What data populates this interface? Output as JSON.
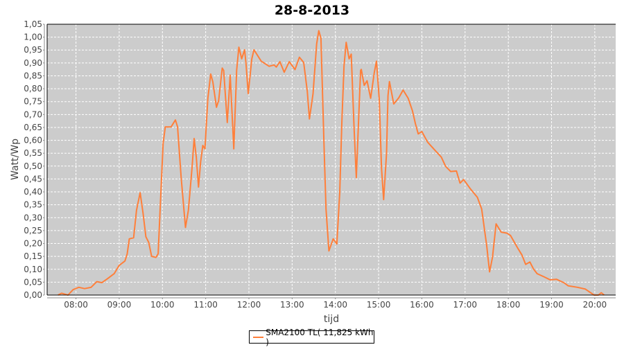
{
  "chart_data": {
    "type": "line",
    "title": "28-8-2013",
    "xlabel": "tijd",
    "ylabel": "Watt/Wp",
    "xlim": [
      "07:20",
      "20:29"
    ],
    "ylim": [
      0,
      1.05
    ],
    "grid": true,
    "legend_position": "bottom",
    "x_ticks": [
      "08:00",
      "09:00",
      "10:00",
      "11:00",
      "12:00",
      "13:00",
      "14:00",
      "15:00",
      "16:00",
      "17:00",
      "18:00",
      "19:00",
      "20:00"
    ],
    "y_ticks": [
      "0,00",
      "0,05",
      "0,10",
      "0,15",
      "0,20",
      "0,25",
      "0,30",
      "0,35",
      "0,40",
      "0,45",
      "0,50",
      "0,55",
      "0,60",
      "0,65",
      "0,70",
      "0,75",
      "0,80",
      "0,85",
      "0,90",
      "0,95",
      "1,00",
      "1,05"
    ],
    "colors": {
      "series": "#ff7f3a",
      "plot_background": "#cccccc",
      "grid": "#ffffff"
    },
    "series": [
      {
        "name": "SMA2100 TL( 11,825 kWh )",
        "points": [
          [
            "07:35",
            0.0
          ],
          [
            "07:40",
            0.007
          ],
          [
            "07:49",
            0.0
          ],
          [
            "07:56",
            0.021
          ],
          [
            "08:04",
            0.03
          ],
          [
            "08:12",
            0.025
          ],
          [
            "08:21",
            0.03
          ],
          [
            "08:29",
            0.052
          ],
          [
            "08:36",
            0.048
          ],
          [
            "08:44",
            0.064
          ],
          [
            "08:53",
            0.083
          ],
          [
            "09:00",
            0.115
          ],
          [
            "09:08",
            0.132
          ],
          [
            "09:11",
            0.159
          ],
          [
            "09:14",
            0.218
          ],
          [
            "09:20",
            0.222
          ],
          [
            "09:24",
            0.329
          ],
          [
            "09:29",
            0.397
          ],
          [
            "09:33",
            0.32
          ],
          [
            "09:37",
            0.226
          ],
          [
            "09:41",
            0.204
          ],
          [
            "09:45",
            0.15
          ],
          [
            "09:51",
            0.146
          ],
          [
            "09:54",
            0.16
          ],
          [
            "09:57",
            0.347
          ],
          [
            "10:01",
            0.589
          ],
          [
            "10:04",
            0.652
          ],
          [
            "10:12",
            0.652
          ],
          [
            "10:18",
            0.679
          ],
          [
            "10:21",
            0.652
          ],
          [
            "10:26",
            0.455
          ],
          [
            "10:32",
            0.262
          ],
          [
            "10:36",
            0.329
          ],
          [
            "10:41",
            0.491
          ],
          [
            "10:44",
            0.607
          ],
          [
            "10:47",
            0.535
          ],
          [
            "10:50",
            0.419
          ],
          [
            "10:53",
            0.517
          ],
          [
            "10:56",
            0.58
          ],
          [
            "10:59",
            0.567
          ],
          [
            "11:03",
            0.763
          ],
          [
            "11:07",
            0.857
          ],
          [
            "11:10",
            0.826
          ],
          [
            "11:15",
            0.728
          ],
          [
            "11:18",
            0.755
          ],
          [
            "11:23",
            0.88
          ],
          [
            "11:25",
            0.871
          ],
          [
            "11:30",
            0.669
          ],
          [
            "11:34",
            0.853
          ],
          [
            "11:39",
            0.567
          ],
          [
            "11:43",
            0.871
          ],
          [
            "11:46",
            0.961
          ],
          [
            "11:50",
            0.916
          ],
          [
            "11:54",
            0.951
          ],
          [
            "11:56",
            0.898
          ],
          [
            "11:59",
            0.781
          ],
          [
            "12:04",
            0.916
          ],
          [
            "12:07",
            0.951
          ],
          [
            "12:17",
            0.907
          ],
          [
            "12:28",
            0.887
          ],
          [
            "12:35",
            0.892
          ],
          [
            "12:38",
            0.884
          ],
          [
            "12:43",
            0.905
          ],
          [
            "12:49",
            0.864
          ],
          [
            "12:56",
            0.905
          ],
          [
            "13:04",
            0.874
          ],
          [
            "13:10",
            0.922
          ],
          [
            "13:16",
            0.902
          ],
          [
            "13:21",
            0.79
          ],
          [
            "13:24",
            0.683
          ],
          [
            "13:29",
            0.781
          ],
          [
            "13:34",
            0.974
          ],
          [
            "13:37",
            1.025
          ],
          [
            "13:40",
            0.996
          ],
          [
            "13:44",
            0.602
          ],
          [
            "13:47",
            0.334
          ],
          [
            "13:51",
            0.171
          ],
          [
            "13:57",
            0.218
          ],
          [
            "14:02",
            0.198
          ],
          [
            "14:06",
            0.397
          ],
          [
            "14:09",
            0.674
          ],
          [
            "14:12",
            0.889
          ],
          [
            "14:15",
            0.98
          ],
          [
            "14:19",
            0.916
          ],
          [
            "14:22",
            0.934
          ],
          [
            "14:26",
            0.647
          ],
          [
            "14:29",
            0.455
          ],
          [
            "14:32",
            0.665
          ],
          [
            "14:35",
            0.871
          ],
          [
            "14:36",
            0.875
          ],
          [
            "14:40",
            0.813
          ],
          [
            "14:44",
            0.831
          ],
          [
            "14:49",
            0.763
          ],
          [
            "14:54",
            0.862
          ],
          [
            "14:57",
            0.907
          ],
          [
            "15:01",
            0.755
          ],
          [
            "15:04",
            0.495
          ],
          [
            "15:07",
            0.37
          ],
          [
            "15:11",
            0.549
          ],
          [
            "15:13",
            0.773
          ],
          [
            "15:15",
            0.828
          ],
          [
            "15:21",
            0.741
          ],
          [
            "15:28",
            0.765
          ],
          [
            "15:34",
            0.795
          ],
          [
            "15:41",
            0.763
          ],
          [
            "15:47",
            0.714
          ],
          [
            "15:51",
            0.665
          ],
          [
            "15:55",
            0.625
          ],
          [
            "16:00",
            0.634
          ],
          [
            "16:08",
            0.593
          ],
          [
            "16:18",
            0.562
          ],
          [
            "16:27",
            0.535
          ],
          [
            "16:33",
            0.499
          ],
          [
            "16:40",
            0.479
          ],
          [
            "16:48",
            0.481
          ],
          [
            "16:53",
            0.434
          ],
          [
            "16:58",
            0.448
          ],
          [
            "17:07",
            0.413
          ],
          [
            "17:17",
            0.379
          ],
          [
            "17:23",
            0.334
          ],
          [
            "17:30",
            0.191
          ],
          [
            "17:34",
            0.09
          ],
          [
            "17:38",
            0.146
          ],
          [
            "17:43",
            0.276
          ],
          [
            "17:50",
            0.244
          ],
          [
            "17:58",
            0.24
          ],
          [
            "18:03",
            0.231
          ],
          [
            "18:13",
            0.182
          ],
          [
            "18:19",
            0.155
          ],
          [
            "18:24",
            0.119
          ],
          [
            "18:30",
            0.128
          ],
          [
            "18:35",
            0.101
          ],
          [
            "18:40",
            0.083
          ],
          [
            "18:50",
            0.07
          ],
          [
            "18:58",
            0.059
          ],
          [
            "19:07",
            0.061
          ],
          [
            "19:17",
            0.048
          ],
          [
            "19:23",
            0.036
          ],
          [
            "19:36",
            0.03
          ],
          [
            "19:47",
            0.023
          ],
          [
            "19:59",
            0.0
          ],
          [
            "20:05",
            0.0
          ],
          [
            "20:09",
            0.009
          ],
          [
            "20:13",
            0.0
          ]
        ]
      }
    ]
  }
}
